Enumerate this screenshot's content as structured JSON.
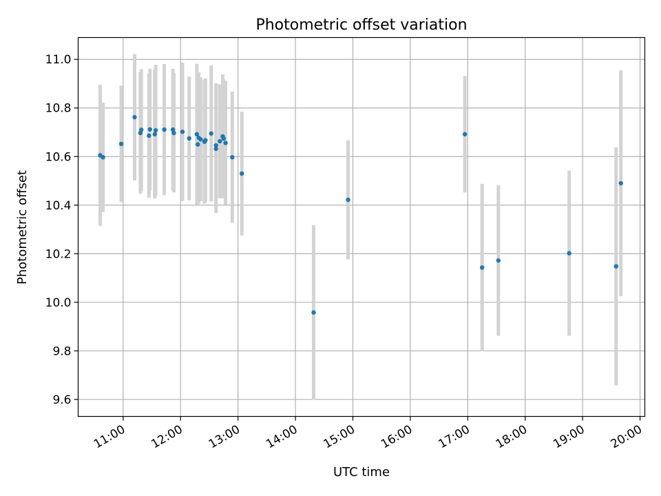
{
  "chart_data": {
    "type": "scatter",
    "title": "Photometric offset variation",
    "xlabel": "UTC time",
    "ylabel": "Photometric offset",
    "xlim": [
      "10:13",
      "20:05"
    ],
    "ylim": [
      9.53,
      11.09
    ],
    "x_ticks": [
      "11:00",
      "12:00",
      "13:00",
      "14:00",
      "15:00",
      "16:00",
      "17:00",
      "18:00",
      "19:00",
      "20:00"
    ],
    "y_ticks": [
      9.6,
      9.8,
      10.0,
      10.2,
      10.4,
      10.6,
      10.8,
      11.0
    ],
    "y_tick_labels": [
      "9.6",
      "9.8",
      "10.0",
      "10.2",
      "10.4",
      "10.6",
      "10.8",
      "11.0"
    ],
    "grid": true,
    "marker_color": "#1f77b4",
    "errorbar_color": "#d3d3d3",
    "points": [
      {
        "x": "10:36",
        "y": 10.605,
        "err": 0.29
      },
      {
        "x": "10:39",
        "y": 10.597,
        "err": 0.225
      },
      {
        "x": "10:58",
        "y": 10.652,
        "err": 0.24
      },
      {
        "x": "11:12",
        "y": 10.762,
        "err": 0.26
      },
      {
        "x": "11:18",
        "y": 10.697,
        "err": 0.25
      },
      {
        "x": "11:19",
        "y": 10.71,
        "err": 0.25
      },
      {
        "x": "11:27",
        "y": 10.686,
        "err": 0.255
      },
      {
        "x": "11:28",
        "y": 10.712,
        "err": 0.25
      },
      {
        "x": "11:33",
        "y": 10.692,
        "err": 0.265
      },
      {
        "x": "11:34",
        "y": 10.708,
        "err": 0.27
      },
      {
        "x": "11:43",
        "y": 10.711,
        "err": 0.27
      },
      {
        "x": "11:52",
        "y": 10.711,
        "err": 0.25
      },
      {
        "x": "11:53",
        "y": 10.697,
        "err": 0.245
      },
      {
        "x": "12:02",
        "y": 10.702,
        "err": 0.285
      },
      {
        "x": "12:09",
        "y": 10.675,
        "err": 0.255
      },
      {
        "x": "12:17",
        "y": 10.692,
        "err": 0.29
      },
      {
        "x": "12:18",
        "y": 10.65,
        "err": 0.25
      },
      {
        "x": "12:19",
        "y": 10.677,
        "err": 0.27
      },
      {
        "x": "12:21",
        "y": 10.671,
        "err": 0.255
      },
      {
        "x": "12:25",
        "y": 10.661,
        "err": 0.255
      },
      {
        "x": "12:26",
        "y": 10.667,
        "err": 0.255
      },
      {
        "x": "12:32",
        "y": 10.695,
        "err": 0.28
      },
      {
        "x": "12:37",
        "y": 10.646,
        "err": 0.255
      },
      {
        "x": "12:37",
        "y": 10.632,
        "err": 0.265
      },
      {
        "x": "12:41",
        "y": 10.663,
        "err": 0.235
      },
      {
        "x": "12:44",
        "y": 10.683,
        "err": 0.255
      },
      {
        "x": "12:45",
        "y": 10.674,
        "err": 0.245
      },
      {
        "x": "12:47",
        "y": 10.656,
        "err": 0.255
      },
      {
        "x": "12:54",
        "y": 10.597,
        "err": 0.27
      },
      {
        "x": "13:04",
        "y": 10.53,
        "err": 0.255
      },
      {
        "x": "14:19",
        "y": 9.958,
        "err": 0.36
      },
      {
        "x": "14:55",
        "y": 10.422,
        "err": 0.245
      },
      {
        "x": "16:57",
        "y": 10.692,
        "err": 0.24
      },
      {
        "x": "17:15",
        "y": 10.143,
        "err": 0.345
      },
      {
        "x": "17:32",
        "y": 10.172,
        "err": 0.31
      },
      {
        "x": "18:46",
        "y": 10.202,
        "err": 0.34
      },
      {
        "x": "19:35",
        "y": 10.148,
        "err": 0.49
      },
      {
        "x": "19:40",
        "y": 10.49,
        "err": 0.465
      }
    ]
  }
}
